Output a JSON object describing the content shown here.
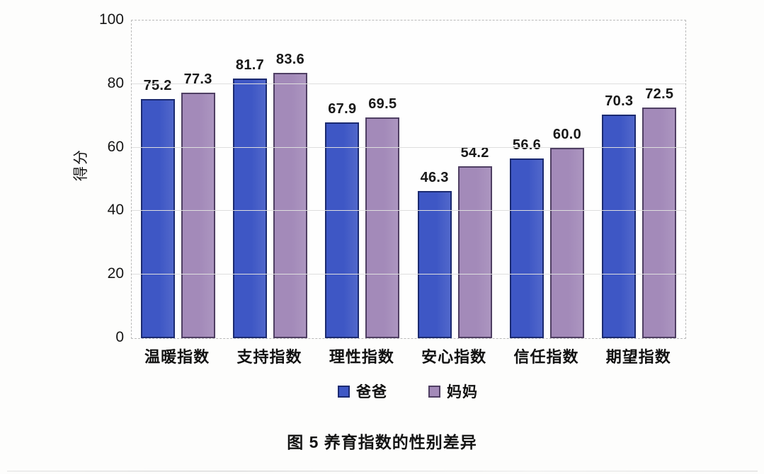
{
  "figure": {
    "caption": "图 5  养育指数的性别差异"
  },
  "chart_data": {
    "type": "bar",
    "title": "",
    "xlabel": "",
    "ylabel": "得分",
    "ylim": [
      0,
      100
    ],
    "yticks": [
      0,
      20,
      40,
      60,
      80,
      100
    ],
    "grid": true,
    "value_labels": true,
    "legend_position": "bottom",
    "categories": [
      "温暖指数",
      "支持指数",
      "理性指数",
      "安心指数",
      "信任指数",
      "期望指数"
    ],
    "series": [
      {
        "name": "爸爸",
        "color": "#3e57c5",
        "border_color": "#1b2a70",
        "values": [
          75.2,
          81.7,
          67.9,
          46.3,
          56.6,
          70.3
        ]
      },
      {
        "name": "妈妈",
        "color": "#a38ab9",
        "border_color": "#4f3f63",
        "values": [
          77.3,
          83.6,
          69.5,
          54.2,
          60.0,
          72.5
        ]
      }
    ]
  }
}
